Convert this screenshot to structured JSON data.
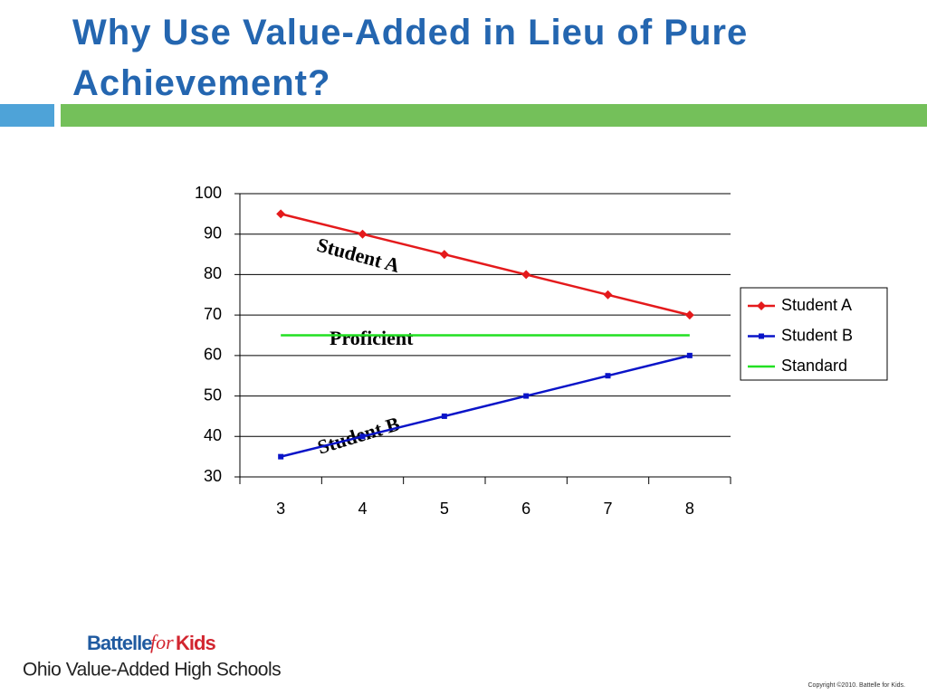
{
  "slide": {
    "title": "Why Use Value-Added in Lieu of Pure Achievement?",
    "logo": {
      "brand": "Battelle",
      "joiner": "for",
      "brand_end": "Kids",
      "subtitle": "Ohio Value-Added High Schools"
    },
    "copyright": "Copyright ©2010. Battelle for Kids."
  },
  "chart_data": {
    "type": "line",
    "categories": [
      "3",
      "4",
      "5",
      "6",
      "7",
      "8"
    ],
    "series": [
      {
        "name": "Student A",
        "color": "#e41a1c",
        "marker": "diamond",
        "values": [
          95,
          90,
          85,
          80,
          75,
          70
        ]
      },
      {
        "name": "Student B",
        "color": "#0a14c8",
        "marker": "square",
        "values": [
          35,
          40,
          45,
          50,
          55,
          60
        ]
      },
      {
        "name": "Standard",
        "color": "#22e022",
        "marker": "none",
        "values": [
          65,
          65,
          65,
          65,
          65,
          65
        ]
      }
    ],
    "annotations": [
      "Student A",
      "Proficient",
      "Student B"
    ],
    "ylim": [
      30,
      100
    ],
    "yticks": [
      30,
      40,
      50,
      60,
      70,
      80,
      90,
      100
    ],
    "grid": true,
    "legend": "right"
  }
}
